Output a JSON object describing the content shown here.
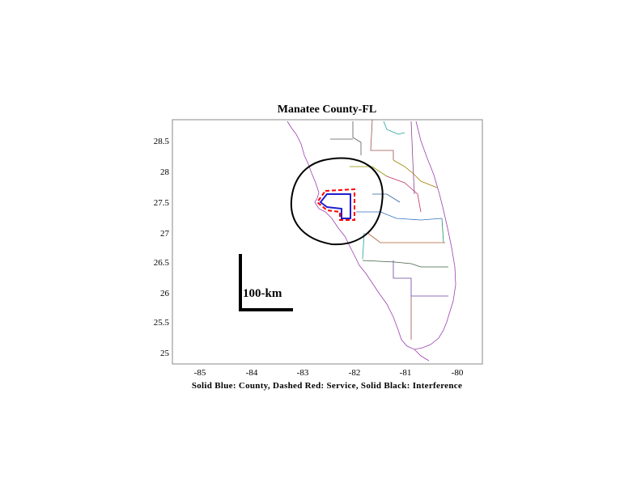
{
  "title": "Manatee County-FL",
  "caption": "Solid Blue: County, Dashed Red: Service, Solid Black: Interference",
  "scale_bar_label": "100-km",
  "x_ticks": [
    "-85",
    "-84",
    "-83",
    "-82",
    "-81",
    "-80"
  ],
  "y_ticks": [
    "28.5",
    "28",
    "27.5",
    "27",
    "26.5",
    "26",
    "25.5",
    "25"
  ],
  "colors": {
    "county": "#1f1fd0",
    "service": "#ff0000",
    "interference": "#000000",
    "frame": "#888888"
  }
}
